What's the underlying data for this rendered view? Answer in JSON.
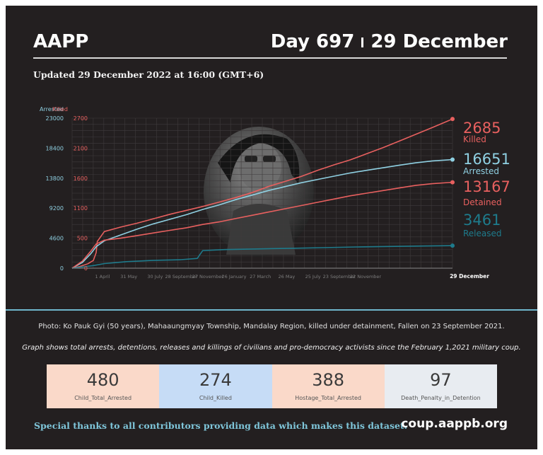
{
  "header": {
    "brand": "AAPP",
    "day": "Day 697",
    "date": "29 December",
    "updated": "Updated 29 December 2022 at 16:00 (GMT+6)"
  },
  "chart_data": {
    "type": "line",
    "legend_left": {
      "arrested": "Arrested",
      "killed": "Killed"
    },
    "y_left_ticks": [
      0,
      4600,
      9200,
      13800,
      18400,
      23000
    ],
    "y_left_range": [
      0,
      23000
    ],
    "y_right_ticks": [
      0,
      500,
      1100,
      1600,
      2100,
      2700
    ],
    "y_right_range": [
      0,
      2700
    ],
    "x_ticks": [
      "1 April",
      "31 May",
      "30 July",
      "28 September",
      "27 November",
      "26 January",
      "27 March",
      "26 May",
      "25 July",
      "23 September",
      "22 November",
      "29 December"
    ],
    "x_range": [
      1,
      697
    ],
    "series": [
      {
        "name": "Killed",
        "axis": "right",
        "color": "#e8605f",
        "end_value": "2685",
        "end_label": "Killed",
        "points": [
          [
            1,
            0
          ],
          [
            15,
            30
          ],
          [
            30,
            80
          ],
          [
            40,
            140
          ],
          [
            45,
            280
          ],
          [
            47,
            480
          ],
          [
            60,
            660
          ],
          [
            90,
            740
          ],
          [
            120,
            810
          ],
          [
            150,
            890
          ],
          [
            180,
            970
          ],
          [
            210,
            1040
          ],
          [
            240,
            1110
          ],
          [
            270,
            1190
          ],
          [
            300,
            1270
          ],
          [
            330,
            1360
          ],
          [
            360,
            1470
          ],
          [
            390,
            1560
          ],
          [
            420,
            1650
          ],
          [
            450,
            1760
          ],
          [
            480,
            1860
          ],
          [
            510,
            1950
          ],
          [
            540,
            2060
          ],
          [
            570,
            2170
          ],
          [
            600,
            2290
          ],
          [
            630,
            2410
          ],
          [
            660,
            2530
          ],
          [
            697,
            2685
          ]
        ]
      },
      {
        "name": "Arrested",
        "axis": "left",
        "color": "#8fd0e2",
        "end_value": "16651",
        "end_label": "Arrested",
        "points": [
          [
            1,
            0
          ],
          [
            20,
            900
          ],
          [
            35,
            2200
          ],
          [
            45,
            3300
          ],
          [
            60,
            4200
          ],
          [
            90,
            5100
          ],
          [
            120,
            6000
          ],
          [
            150,
            6800
          ],
          [
            180,
            7500
          ],
          [
            210,
            8200
          ],
          [
            240,
            9000
          ],
          [
            270,
            9700
          ],
          [
            300,
            10500
          ],
          [
            330,
            11200
          ],
          [
            360,
            11900
          ],
          [
            390,
            12500
          ],
          [
            420,
            13100
          ],
          [
            450,
            13600
          ],
          [
            480,
            14100
          ],
          [
            510,
            14600
          ],
          [
            540,
            15000
          ],
          [
            570,
            15400
          ],
          [
            600,
            15800
          ],
          [
            630,
            16150
          ],
          [
            660,
            16450
          ],
          [
            697,
            16651
          ]
        ]
      },
      {
        "name": "Detained",
        "axis": "left",
        "color": "#e8605f",
        "end_value": "13167",
        "end_label": "Detained",
        "points": [
          [
            1,
            0
          ],
          [
            20,
            1100
          ],
          [
            35,
            2600
          ],
          [
            45,
            3700
          ],
          [
            60,
            4300
          ],
          [
            90,
            4600
          ],
          [
            120,
            5000
          ],
          [
            150,
            5400
          ],
          [
            180,
            5800
          ],
          [
            210,
            6200
          ],
          [
            240,
            6700
          ],
          [
            270,
            7100
          ],
          [
            300,
            7600
          ],
          [
            330,
            8100
          ],
          [
            360,
            8600
          ],
          [
            390,
            9100
          ],
          [
            420,
            9600
          ],
          [
            450,
            10100
          ],
          [
            480,
            10600
          ],
          [
            510,
            11100
          ],
          [
            540,
            11500
          ],
          [
            570,
            11900
          ],
          [
            600,
            12300
          ],
          [
            630,
            12700
          ],
          [
            660,
            12950
          ],
          [
            697,
            13167
          ]
        ]
      },
      {
        "name": "Released",
        "axis": "left",
        "color": "#1e7b8c",
        "end_value": "3461",
        "end_label": "Released",
        "points": [
          [
            1,
            0
          ],
          [
            40,
            400
          ],
          [
            60,
            700
          ],
          [
            100,
            1000
          ],
          [
            150,
            1200
          ],
          [
            200,
            1300
          ],
          [
            230,
            1500
          ],
          [
            240,
            2700
          ],
          [
            280,
            2850
          ],
          [
            340,
            2950
          ],
          [
            400,
            3050
          ],
          [
            460,
            3150
          ],
          [
            520,
            3250
          ],
          [
            580,
            3330
          ],
          [
            640,
            3400
          ],
          [
            697,
            3461
          ]
        ]
      }
    ]
  },
  "footer": {
    "photo_caption": "Photo: Ko Pauk Gyi  (50 years),  Mahaaungmyay Township, Mandalay Region, killed under detainment, Fallen on 23 September 2021.",
    "graph_note": "Graph shows total arrests, detentions, releases and killings of civilians and pro-democracy activists since the February 1,2021 military coup.",
    "stats": [
      {
        "value": "480",
        "label": "Child_Total_Arrested",
        "bg": "#fad9c9"
      },
      {
        "value": "274",
        "label": "Child_Killed",
        "bg": "#c6dcf6"
      },
      {
        "value": "388",
        "label": "Hostage_Total_Arrested",
        "bg": "#fad9c9"
      },
      {
        "value": "97",
        "label": "Death_Penalty_in_Detention",
        "bg": "#e8ecf1"
      }
    ],
    "thanks": "Special thanks to all contributors providing data which makes this dataset.",
    "site": "coup.aappb.org"
  }
}
